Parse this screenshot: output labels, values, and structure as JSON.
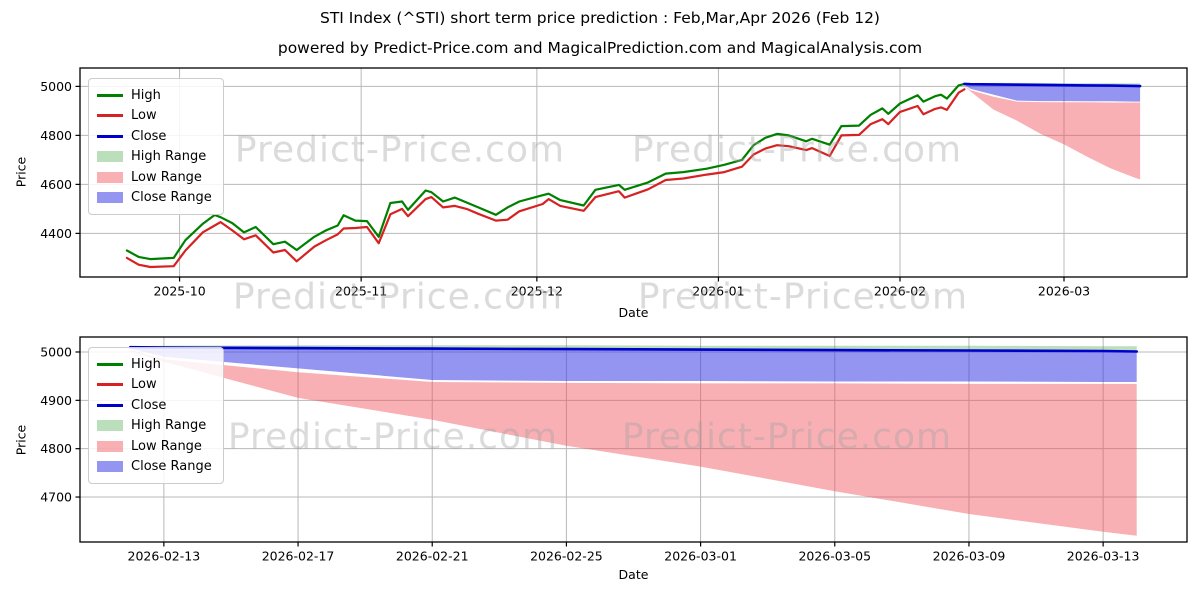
{
  "page": {
    "title": "STI Index (^STI) short term price prediction : Feb,Mar,Apr 2026 (Feb 12)",
    "subtitle": "powered by Predict-Price.com and MagicalPrediction.com and MagicalAnalysis.com"
  },
  "watermark": {
    "text": "Predict-Price.com"
  },
  "colors": {
    "high_line": "#008000",
    "low_line": "#d62222",
    "close_line": "#0000cd",
    "high_band": "rgba(60,160,60,0.35)",
    "low_band": "rgba(240,80,90,0.45)",
    "close_band": "rgba(60,60,230,0.55)",
    "grid": "#b8b8b8",
    "axis": "#000000"
  },
  "legend": {
    "items": [
      {
        "label": "High",
        "type": "line",
        "color": "#008000"
      },
      {
        "label": "Low",
        "type": "line",
        "color": "#d62222"
      },
      {
        "label": "Close",
        "type": "line",
        "color": "#0000cd"
      },
      {
        "label": "High Range",
        "type": "patch",
        "color": "rgba(60,160,60,0.35)"
      },
      {
        "label": "Low Range",
        "type": "patch",
        "color": "rgba(240,80,90,0.45)"
      },
      {
        "label": "Close Range",
        "type": "patch",
        "color": "rgba(60,60,230,0.55)"
      }
    ]
  },
  "chart_data": [
    {
      "type": "line",
      "xlabel": "Date",
      "ylabel": "Price",
      "x_range": [
        "2025-09-14",
        "2026-03-22"
      ],
      "y_range": [
        4222,
        5075
      ],
      "x_ticks": [
        {
          "value": "2025-10-01",
          "label": "2025-10"
        },
        {
          "value": "2025-11-01",
          "label": "2025-11"
        },
        {
          "value": "2025-12-01",
          "label": "2025-12"
        },
        {
          "value": "2026-01-01",
          "label": "2026-01"
        },
        {
          "value": "2026-02-01",
          "label": "2026-02"
        },
        {
          "value": "2026-03-01",
          "label": "2026-03"
        }
      ],
      "y_ticks": [
        4400,
        4600,
        4800,
        5000
      ],
      "x": [
        "2025-09-22",
        "2025-09-24",
        "2025-09-26",
        "2025-09-30",
        "2025-10-02",
        "2025-10-05",
        "2025-10-07",
        "2025-10-08",
        "2025-10-10",
        "2025-10-12",
        "2025-10-14",
        "2025-10-17",
        "2025-10-19",
        "2025-10-21",
        "2025-10-24",
        "2025-10-26",
        "2025-10-28",
        "2025-10-29",
        "2025-10-31",
        "2025-11-02",
        "2025-11-04",
        "2025-11-06",
        "2025-11-08",
        "2025-11-09",
        "2025-11-12",
        "2025-11-13",
        "2025-11-15",
        "2025-11-17",
        "2025-11-19",
        "2025-11-21",
        "2025-11-24",
        "2025-11-26",
        "2025-11-28",
        "2025-12-02",
        "2025-12-03",
        "2025-12-05",
        "2025-12-09",
        "2025-12-11",
        "2025-12-15",
        "2025-12-16",
        "2025-12-20",
        "2025-12-23",
        "2025-12-26",
        "2025-12-30",
        "2026-01-02",
        "2026-01-05",
        "2026-01-07",
        "2026-01-09",
        "2026-01-11",
        "2026-01-13",
        "2026-01-16",
        "2026-01-17",
        "2026-01-20",
        "2026-01-22",
        "2026-01-25",
        "2026-01-27",
        "2026-01-29",
        "2026-01-30",
        "2026-02-01",
        "2026-02-04",
        "2026-02-05",
        "2026-02-07",
        "2026-02-08",
        "2026-02-09",
        "2026-02-11",
        "2026-02-12"
      ],
      "series": [
        {
          "name": "High",
          "color": "#008000",
          "width": 2.2,
          "values": [
            4330,
            4304,
            4295,
            4300,
            4372,
            4440,
            4475,
            4466,
            4442,
            4404,
            4426,
            4356,
            4366,
            4332,
            4386,
            4412,
            4432,
            4474,
            4452,
            4450,
            4386,
            4524,
            4530,
            4496,
            4575,
            4568,
            4530,
            4546,
            4526,
            4506,
            4476,
            4506,
            4530,
            4556,
            4562,
            4536,
            4514,
            4578,
            4598,
            4578,
            4608,
            4644,
            4650,
            4664,
            4680,
            4700,
            4760,
            4790,
            4806,
            4800,
            4776,
            4786,
            4762,
            4838,
            4840,
            4884,
            4910,
            4888,
            4930,
            4964,
            4938,
            4960,
            4966,
            4950,
            5004,
            5010
          ]
        },
        {
          "name": "Low",
          "color": "#d62222",
          "width": 2.2,
          "values": [
            4300,
            4272,
            4263,
            4266,
            4330,
            4405,
            4432,
            4446,
            4412,
            4376,
            4392,
            4322,
            4332,
            4286,
            4346,
            4372,
            4396,
            4420,
            4422,
            4426,
            4360,
            4478,
            4500,
            4470,
            4540,
            4548,
            4506,
            4512,
            4500,
            4480,
            4452,
            4456,
            4490,
            4520,
            4540,
            4512,
            4492,
            4548,
            4572,
            4546,
            4580,
            4618,
            4624,
            4640,
            4650,
            4672,
            4722,
            4746,
            4760,
            4756,
            4740,
            4748,
            4716,
            4800,
            4802,
            4846,
            4866,
            4846,
            4896,
            4920,
            4886,
            4908,
            4914,
            4904,
            4974,
            4988
          ]
        },
        {
          "name": "Close",
          "color": "#0000cd",
          "width": 2.6,
          "x": [
            "2026-02-12",
            "2026-02-13",
            "2026-02-17",
            "2026-02-21",
            "2026-02-25",
            "2026-03-01",
            "2026-03-05",
            "2026-03-09",
            "2026-03-13",
            "2026-03-14"
          ],
          "values": [
            5010,
            5009,
            5008,
            5007,
            5006,
            5005,
            5004,
            5003,
            5002,
            5001
          ]
        }
      ],
      "bands": [
        {
          "name": "High Range",
          "color": "rgba(60,160,60,0.35)",
          "x": [
            "2026-02-12",
            "2026-02-13",
            "2026-02-17",
            "2026-02-21",
            "2026-02-25",
            "2026-03-01",
            "2026-03-05",
            "2026-03-09",
            "2026-03-13",
            "2026-03-14"
          ],
          "top": [
            5012,
            5013,
            5014,
            5014,
            5014,
            5013,
            5013,
            5013,
            5012,
            5012
          ],
          "bottom": [
            5008,
            5006,
            5004,
            5003,
            5003,
            5002,
            5002,
            5001,
            5001,
            5001
          ]
        },
        {
          "name": "Low Range",
          "color": "rgba(240,80,90,0.45)",
          "x": [
            "2026-02-12",
            "2026-02-13",
            "2026-02-17",
            "2026-02-21",
            "2026-02-25",
            "2026-03-01",
            "2026-03-05",
            "2026-03-09",
            "2026-03-13",
            "2026-03-14"
          ],
          "top": [
            5005,
            4985,
            4958,
            4938,
            4936,
            4935,
            4935,
            4934,
            4934,
            4934
          ],
          "bottom": [
            5002,
            4980,
            4905,
            4860,
            4806,
            4763,
            4712,
            4665,
            4628,
            4620
          ]
        },
        {
          "name": "Close Range",
          "color": "rgba(60,60,230,0.55)",
          "x": [
            "2026-02-12",
            "2026-02-13",
            "2026-02-17",
            "2026-02-21",
            "2026-02-25",
            "2026-03-01",
            "2026-03-05",
            "2026-03-09",
            "2026-03-13",
            "2026-03-14"
          ],
          "top": [
            5010,
            5009,
            5008,
            5007,
            5006,
            5005,
            5004,
            5003,
            5002,
            5001
          ],
          "bottom": [
            5007,
            4990,
            4966,
            4942,
            4940,
            4940,
            4939,
            4939,
            4938,
            4938
          ]
        }
      ]
    },
    {
      "type": "line",
      "xlabel": "Date",
      "ylabel": "Price",
      "x_range": [
        "2026-02-10T12:00",
        "2026-03-15T12:00"
      ],
      "y_range": [
        4607,
        5031
      ],
      "x_ticks": [
        {
          "value": "2026-02-13",
          "label": "2026-02-13"
        },
        {
          "value": "2026-02-17",
          "label": "2026-02-17"
        },
        {
          "value": "2026-02-21",
          "label": "2026-02-21"
        },
        {
          "value": "2026-02-25",
          "label": "2026-02-25"
        },
        {
          "value": "2026-03-01",
          "label": "2026-03-01"
        },
        {
          "value": "2026-03-05",
          "label": "2026-03-05"
        },
        {
          "value": "2026-03-09",
          "label": "2026-03-09"
        },
        {
          "value": "2026-03-13",
          "label": "2026-03-13"
        }
      ],
      "y_ticks": [
        4700,
        4800,
        4900,
        5000
      ],
      "x": [
        "2026-02-12",
        "2026-02-13",
        "2026-02-17",
        "2026-02-21",
        "2026-02-25",
        "2026-03-01",
        "2026-03-05",
        "2026-03-09",
        "2026-03-13",
        "2026-03-14"
      ],
      "series": [
        {
          "name": "Close",
          "color": "#0000cd",
          "width": 2.6,
          "values": [
            5010,
            5009,
            5008,
            5007,
            5006,
            5005,
            5004,
            5003,
            5002,
            5001
          ]
        }
      ],
      "bands": [
        {
          "name": "High Range",
          "color": "rgba(60,160,60,0.35)",
          "top": [
            5012,
            5013,
            5014,
            5014,
            5014,
            5013,
            5013,
            5013,
            5012,
            5012
          ],
          "bottom": [
            5008,
            5006,
            5004,
            5003,
            5003,
            5002,
            5002,
            5001,
            5001,
            5001
          ]
        },
        {
          "name": "Low Range",
          "color": "rgba(240,80,90,0.45)",
          "top": [
            5005,
            4985,
            4958,
            4938,
            4936,
            4935,
            4935,
            4934,
            4934,
            4934
          ],
          "bottom": [
            5002,
            4980,
            4905,
            4860,
            4806,
            4763,
            4712,
            4665,
            4628,
            4620
          ]
        },
        {
          "name": "Close Range",
          "color": "rgba(60,60,230,0.55)",
          "top": [
            5010,
            5009,
            5008,
            5007,
            5006,
            5005,
            5004,
            5003,
            5002,
            5001
          ],
          "bottom": [
            5007,
            4990,
            4966,
            4942,
            4940,
            4940,
            4939,
            4939,
            4938,
            4938
          ]
        }
      ]
    }
  ]
}
